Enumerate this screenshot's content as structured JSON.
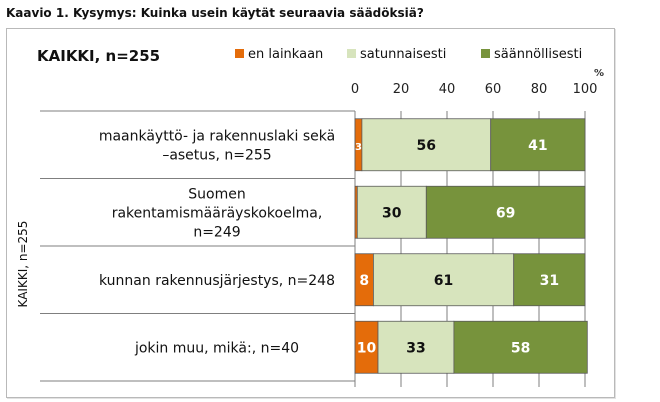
{
  "caption": "Kaavio 1. Kysymys: Kuinka usein käytät seuraavia säädöksiä?",
  "chart_data": {
    "type": "bar",
    "orientation": "horizontal",
    "stacked": true,
    "title": "KAIKKI, n=255",
    "ylabel": "KAIKKI, n=255",
    "xunit": "%",
    "xlim": [
      0,
      100
    ],
    "xticks": [
      "0",
      "20",
      "40",
      "60",
      "80",
      "100"
    ],
    "xtick_values": [
      0,
      20,
      40,
      60,
      80,
      100
    ],
    "grid": true,
    "legend_position": "top",
    "categories": [
      [
        "maankäyttö- ja rakennuslaki sekä",
        "–asetus, n=255"
      ],
      [
        "Suomen",
        "rakentamismääräyskokoelma,",
        "n=249"
      ],
      [
        "kunnan rakennusjärjestys, n=248"
      ],
      [
        "jokin muu, mikä:, n=40"
      ]
    ],
    "series": [
      {
        "name": "en lainkaan",
        "color": "#e46c0a",
        "values": [
          3,
          1,
          8,
          10
        ],
        "labels": [
          "3",
          "",
          "8",
          "10"
        ]
      },
      {
        "name": "satunnaisesti",
        "color": "#d7e4bd",
        "values": [
          56,
          30,
          61,
          33
        ],
        "labels": [
          "56",
          "30",
          "61",
          "33"
        ]
      },
      {
        "name": "säännöllisesti",
        "color": "#77933c",
        "values": [
          41,
          69,
          31,
          58
        ],
        "labels": [
          "41",
          "69",
          "31",
          "58"
        ]
      }
    ]
  }
}
